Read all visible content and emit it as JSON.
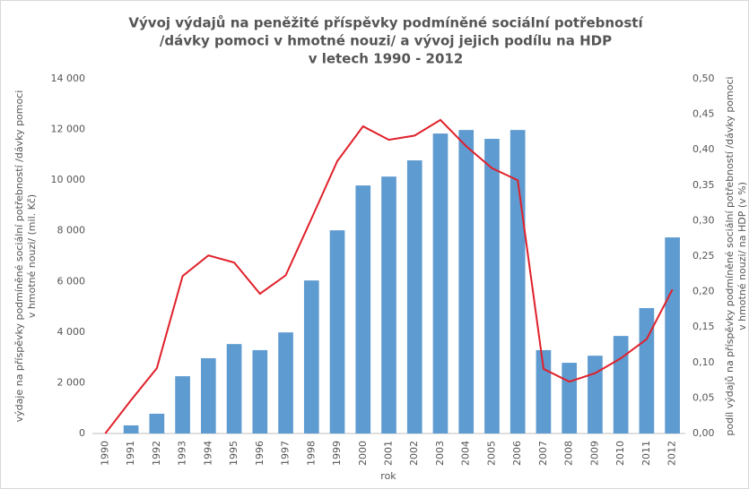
{
  "chart_data": {
    "type": "bar-line",
    "title": [
      "Vývoj výdajů na peněžité příspěvky podmíněné sociální potřebností",
      "/dávky pomoci v hmotné nouzi/ a vývoj jejich podílu na HDP",
      "v letech 1990 - 2012"
    ],
    "xlabel": "rok",
    "ylabel": [
      "výdaje na příspěvky podmíněné sociální potřebností /dávky pomoci",
      "v hmotné nouzi/ (mil. Kč)"
    ],
    "y2label": [
      "podíl výdajů na příspěvky podmíněné sociální potřebností /dávky pomoci",
      "v hmotné nouzi/ na HDP (v %)"
    ],
    "categories": [
      "1990",
      "1991",
      "1992",
      "1993",
      "1994",
      "1995",
      "1996",
      "1997",
      "1998",
      "1999",
      "2000",
      "2001",
      "2002",
      "2003",
      "2004",
      "2005",
      "2006",
      "2007",
      "2008",
      "2009",
      "2010",
      "2011",
      "2012"
    ],
    "series": [
      {
        "kind": "bar",
        "color": "#5e9bd0",
        "values": [
          0,
          320,
          780,
          2260,
          2970,
          3530,
          3290,
          3990,
          6040,
          8020,
          9790,
          10140,
          10780,
          11840,
          11980,
          11630,
          11980,
          3290,
          2790,
          3070,
          3850,
          4950,
          7740
        ]
      },
      {
        "kind": "line",
        "axis": "y2",
        "color": "#e0202a",
        "values": [
          0,
          0.047,
          0.092,
          0.222,
          0.251,
          0.241,
          0.197,
          0.223,
          0.303,
          0.384,
          0.433,
          0.414,
          0.42,
          0.442,
          0.405,
          0.374,
          0.357,
          0.091,
          0.073,
          0.085,
          0.106,
          0.133,
          0.203
        ]
      }
    ],
    "ylim": [
      0,
      14000
    ],
    "yticks": [
      {
        "value": 0,
        "label": "0"
      },
      {
        "value": 2000,
        "label": "2 000"
      },
      {
        "value": 4000,
        "label": "4 000"
      },
      {
        "value": 6000,
        "label": "6 000"
      },
      {
        "value": 8000,
        "label": "8 000"
      },
      {
        "value": 10000,
        "label": "10 000"
      },
      {
        "value": 12000,
        "label": "12 000"
      },
      {
        "value": 14000,
        "label": "14 000"
      }
    ],
    "y2lim": [
      0,
      0.5
    ],
    "y2ticks": [
      {
        "value": 0,
        "label": "0,00"
      },
      {
        "value": 0.05,
        "label": "0,05"
      },
      {
        "value": 0.1,
        "label": "0,10"
      },
      {
        "value": 0.15,
        "label": "0,15"
      },
      {
        "value": 0.2,
        "label": "0,20"
      },
      {
        "value": 0.25,
        "label": "0,25"
      },
      {
        "value": 0.3,
        "label": "0,30"
      },
      {
        "value": 0.35,
        "label": "0,35"
      },
      {
        "value": 0.4,
        "label": "0,40"
      },
      {
        "value": 0.45,
        "label": "0,45"
      },
      {
        "value": 0.5,
        "label": "0,50"
      }
    ],
    "grid": false
  }
}
